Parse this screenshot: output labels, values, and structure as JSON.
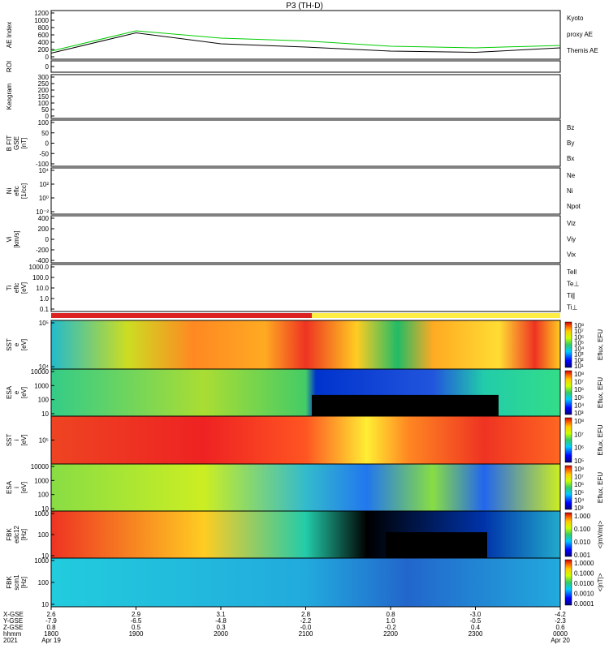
{
  "title": "P3 (TH-D)",
  "panels": [
    {
      "id": "ae",
      "ylabel": [
        "AE Index"
      ],
      "ticks": [
        "1200",
        "1000",
        "800",
        "600",
        "400",
        "200",
        "0"
      ],
      "legend": [
        {
          "text": "Kyoto",
          "color": "#00cc00"
        },
        {
          "text": "proxy AE",
          "color": "#00cc00"
        },
        {
          "text": "Themis AE",
          "color": "#000000"
        }
      ]
    },
    {
      "id": "roi",
      "ylabel": [
        "ROI"
      ],
      "ticks": [
        "0"
      ],
      "legend": []
    },
    {
      "id": "kp",
      "ylabel": [
        "Keogram"
      ],
      "ticks": [
        "300",
        "250",
        "200",
        "150",
        "100",
        "50",
        "0"
      ],
      "legend": []
    },
    {
      "id": "bfit",
      "ylabel": [
        "B FIT",
        "GSE",
        "[nT]"
      ],
      "ticks": [
        "100",
        "50",
        "0",
        "-50",
        "-100"
      ],
      "legend": [
        {
          "text": "Bz",
          "color": "#cc0000"
        },
        {
          "text": "By",
          "color": "#00cc00"
        },
        {
          "text": "Bx",
          "color": "#0000cc"
        }
      ]
    },
    {
      "id": "ni",
      "ylabel": [
        "Ni",
        "eflc",
        "[1/cc]"
      ],
      "ticks": [
        "10⁴",
        "10²",
        "10⁰",
        "10⁻²"
      ],
      "legend": [
        {
          "text": "Ne",
          "color": "#cc0000"
        },
        {
          "text": "Ni",
          "color": "#000000"
        },
        {
          "text": "Npot",
          "color": "#0000cc"
        }
      ]
    },
    {
      "id": "vi",
      "ylabel": [
        "Vi",
        "[km/s]"
      ],
      "ticks": [
        "400",
        "200",
        "0",
        "-200",
        "-400"
      ],
      "legend": [
        {
          "text": "Viz",
          "color": "#cc0000"
        },
        {
          "text": "Viy",
          "color": "#00cc00"
        },
        {
          "text": "Vix",
          "color": "#0000cc"
        }
      ]
    },
    {
      "id": "ti",
      "ylabel": [
        "Ti",
        "eflc",
        "[eV]"
      ],
      "ticks": [
        "1000.0",
        "100.0",
        "10.0",
        "1.0",
        "0.1"
      ],
      "legend": [
        {
          "text": "Tell",
          "color": "#000000"
        },
        {
          "text": "Te⊥",
          "color": "#cc0000"
        },
        {
          "text": "Ti∥",
          "color": "#00cc00"
        },
        {
          "text": "Ti⊥",
          "color": "#0000cc"
        }
      ]
    },
    {
      "id": "sst_e",
      "ylabel": [
        "SST",
        "e",
        "[eV]"
      ],
      "ticks": [
        "10⁵",
        "10⁴"
      ],
      "cbar": [
        "10⁸",
        "10⁷",
        "10⁶",
        "10⁵",
        "10⁴",
        "10³",
        "10²",
        "10¹"
      ],
      "cbarlabel": "Eflux, EFU"
    },
    {
      "id": "esa_e",
      "ylabel": [
        "ESA",
        "e",
        "[eV]"
      ],
      "ticks": [
        "10000",
        "1000",
        "100",
        "10"
      ],
      "cbar": [
        "10⁸",
        "10⁷",
        "10⁶",
        "10⁵",
        "10⁴",
        "10³"
      ],
      "cbarlabel": "Eflux, EFU"
    },
    {
      "id": "sst_i",
      "ylabel": [
        "SST",
        "i",
        "[eV]"
      ],
      "ticks": [
        "10⁵"
      ],
      "cbar": [
        "10⁸",
        "10⁷",
        "10⁶",
        "10⁵"
      ],
      "cbarlabel": "Eflux, EFU"
    },
    {
      "id": "esa_i",
      "ylabel": [
        "ESA",
        "i",
        "[eV]"
      ],
      "ticks": [
        "10000",
        "1000",
        "100",
        "10"
      ],
      "cbar": [
        "10⁸",
        "10⁷",
        "10⁶",
        "10⁵",
        "10⁴",
        "10³"
      ],
      "cbarlabel": "Eflux, EFU"
    },
    {
      "id": "fbk_e",
      "ylabel": [
        "FBK",
        "edc12",
        "[Hz]"
      ],
      "ticks": [
        "1000",
        "100",
        "10"
      ],
      "cbar": [
        "1.000",
        "0.100",
        "0.010",
        "0.001"
      ],
      "cbarlabel": "<|mV/m|>"
    },
    {
      "id": "fbk_b",
      "ylabel": [
        "FBK",
        "scm1",
        "[Hz]"
      ],
      "ticks": [
        "1000",
        "100",
        "10"
      ],
      "cbar": [
        "1.0000",
        "0.1000",
        "0.0100",
        "0.0010",
        "0.0001"
      ],
      "cbarlabel": "<|nT|>"
    }
  ],
  "xaxis": {
    "rowlabels": [
      "X-GSE",
      "Y-GSE",
      "Z-GSE",
      "hhmm",
      "2021"
    ],
    "columns": [
      {
        "vals": [
          "2.6",
          "-7.9",
          "0.8",
          "1800",
          "Apr 19"
        ]
      },
      {
        "vals": [
          "2.9",
          "-6.5",
          "0.5",
          "1900",
          ""
        ]
      },
      {
        "vals": [
          "3.1",
          "-4.8",
          "0.3",
          "2000",
          ""
        ]
      },
      {
        "vals": [
          "2.8",
          "-2.2",
          "-0.0",
          "2100",
          ""
        ]
      },
      {
        "vals": [
          "0.8",
          "1.0",
          "-0.2",
          "2200",
          ""
        ]
      },
      {
        "vals": [
          "-3.0",
          "-0.5",
          "0.4",
          "2300",
          ""
        ]
      },
      {
        "vals": [
          "-4.2",
          "-2.3",
          "0.6",
          "0000",
          "Apr 20"
        ]
      }
    ]
  },
  "chart_data": {
    "type": "line",
    "title": "P3 (TH-D)",
    "x": [
      "1800",
      "1900",
      "2000",
      "2100",
      "2200",
      "2300",
      "0000"
    ],
    "series": [
      {
        "name": "Kyoto proxy AE",
        "values": [
          200,
          700,
          520,
          450,
          320,
          280,
          340
        ]
      },
      {
        "name": "Themis AE",
        "values": [
          150,
          650,
          380,
          300,
          200,
          170,
          280
        ]
      }
    ],
    "ylabel": "AE Index",
    "ylim": [
      0,
      1200
    ]
  }
}
